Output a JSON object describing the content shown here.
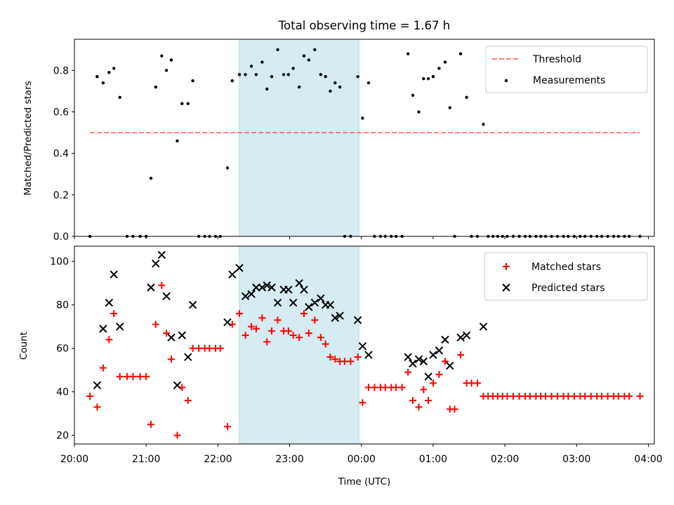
{
  "chart_data": [
    {
      "type": "scatter",
      "title": "Total observing time = 1.67 h",
      "xlabel": "",
      "ylabel": "Matched/Predicted stars",
      "ylim": [
        0.0,
        0.95
      ],
      "yticks": [
        "0.0",
        "0.2",
        "0.4",
        "0.6",
        "0.8"
      ],
      "highlight": {
        "start": "22:18",
        "end": "23:58",
        "color": "#add8e6"
      },
      "threshold": {
        "name": "Threshold",
        "value": 0.5,
        "x_start": "20:13",
        "x_end": "03:53",
        "color": "#ff0000"
      },
      "legend_position": "upper right",
      "series": [
        {
          "name": "Measurements",
          "color": "#000000",
          "marker": "dot",
          "points": [
            [
              "20:13",
              0.0
            ],
            [
              "20:19",
              0.77
            ],
            [
              "20:24",
              0.74
            ],
            [
              "20:29",
              0.79
            ],
            [
              "20:33",
              0.81
            ],
            [
              "20:38",
              0.67
            ],
            [
              "20:44",
              0.0
            ],
            [
              "20:49",
              0.0
            ],
            [
              "20:55",
              0.0
            ],
            [
              "21:00",
              0.0
            ],
            [
              "21:04",
              0.28
            ],
            [
              "21:08",
              0.72
            ],
            [
              "21:13",
              0.87
            ],
            [
              "21:17",
              0.8
            ],
            [
              "21:21",
              0.85
            ],
            [
              "21:26",
              0.46
            ],
            [
              "21:30",
              0.64
            ],
            [
              "21:35",
              0.64
            ],
            [
              "21:39",
              0.75
            ],
            [
              "21:44",
              0.0
            ],
            [
              "21:49",
              0.0
            ],
            [
              "21:53",
              0.0
            ],
            [
              "21:58",
              0.0
            ],
            [
              "22:02",
              0.0
            ],
            [
              "22:08",
              0.33
            ],
            [
              "22:12",
              0.75
            ],
            [
              "22:18",
              0.78
            ],
            [
              "22:23",
              0.78
            ],
            [
              "22:28",
              0.82
            ],
            [
              "22:32",
              0.78
            ],
            [
              "22:37",
              0.84
            ],
            [
              "22:41",
              0.71
            ],
            [
              "22:45",
              0.77
            ],
            [
              "22:50",
              0.9
            ],
            [
              "22:55",
              0.78
            ],
            [
              "22:59",
              0.78
            ],
            [
              "23:03",
              0.81
            ],
            [
              "23:08",
              0.72
            ],
            [
              "23:12",
              0.87
            ],
            [
              "23:16",
              0.85
            ],
            [
              "23:21",
              0.9
            ],
            [
              "23:26",
              0.78
            ],
            [
              "23:30",
              0.77
            ],
            [
              "23:34",
              0.7
            ],
            [
              "23:38",
              0.74
            ],
            [
              "23:42",
              0.72
            ],
            [
              "23:46",
              0.0
            ],
            [
              "23:51",
              0.0
            ],
            [
              "23:57",
              0.77
            ],
            [
              "00:01",
              0.57
            ],
            [
              "00:06",
              0.74
            ],
            [
              "00:11",
              0.0
            ],
            [
              "00:16",
              0.0
            ],
            [
              "00:20",
              0.0
            ],
            [
              "00:25",
              0.0
            ],
            [
              "00:29",
              0.0
            ],
            [
              "00:34",
              0.0
            ],
            [
              "00:39",
              0.88
            ],
            [
              "00:43",
              0.68
            ],
            [
              "00:48",
              0.6
            ],
            [
              "00:52",
              0.76
            ],
            [
              "00:56",
              0.76
            ],
            [
              "01:00",
              0.77
            ],
            [
              "01:05",
              0.81
            ],
            [
              "01:10",
              0.84
            ],
            [
              "01:14",
              0.62
            ],
            [
              "01:18",
              0.0
            ],
            [
              "01:23",
              0.88
            ],
            [
              "01:28",
              0.67
            ],
            [
              "01:32",
              0.0
            ],
            [
              "01:37",
              0.0
            ],
            [
              "01:42",
              0.54
            ],
            [
              "01:46",
              0.0
            ],
            [
              "01:50",
              0.0
            ],
            [
              "01:54",
              0.0
            ],
            [
              "01:58",
              0.0
            ],
            [
              "02:02",
              0.0
            ],
            [
              "02:07",
              0.0
            ],
            [
              "02:12",
              0.0
            ],
            [
              "02:17",
              0.0
            ],
            [
              "02:21",
              0.0
            ],
            [
              "02:26",
              0.0
            ],
            [
              "02:30",
              0.0
            ],
            [
              "02:34",
              0.0
            ],
            [
              "02:39",
              0.0
            ],
            [
              "02:44",
              0.0
            ],
            [
              "02:49",
              0.0
            ],
            [
              "02:53",
              0.0
            ],
            [
              "02:58",
              0.0
            ],
            [
              "03:03",
              0.0
            ],
            [
              "03:07",
              0.0
            ],
            [
              "03:12",
              0.0
            ],
            [
              "03:17",
              0.0
            ],
            [
              "03:21",
              0.0
            ],
            [
              "03:26",
              0.0
            ],
            [
              "03:31",
              0.0
            ],
            [
              "03:35",
              0.0
            ],
            [
              "03:40",
              0.0
            ],
            [
              "03:44",
              0.0
            ],
            [
              "03:53",
              0.0
            ]
          ]
        }
      ]
    },
    {
      "type": "scatter",
      "title": "",
      "xlabel": "Time (UTC)",
      "ylabel": "Count",
      "ylim": [
        16,
        107
      ],
      "yticks": [
        "20",
        "40",
        "60",
        "80",
        "100"
      ],
      "xticks": [
        "20:00",
        "21:00",
        "22:00",
        "23:00",
        "00:00",
        "01:00",
        "02:00",
        "03:00",
        "04:00"
      ],
      "highlight": {
        "start": "22:18",
        "end": "23:58",
        "color": "#add8e6"
      },
      "legend_position": "upper right",
      "series": [
        {
          "name": "Matched stars",
          "color": "#ff0000",
          "marker": "plus",
          "points": [
            [
              "20:13",
              38
            ],
            [
              "20:19",
              33
            ],
            [
              "20:24",
              51
            ],
            [
              "20:29",
              64
            ],
            [
              "20:33",
              76
            ],
            [
              "20:38",
              47
            ],
            [
              "20:44",
              47
            ],
            [
              "20:49",
              47
            ],
            [
              "20:55",
              47
            ],
            [
              "21:00",
              47
            ],
            [
              "21:04",
              25
            ],
            [
              "21:08",
              71
            ],
            [
              "21:13",
              89
            ],
            [
              "21:17",
              67
            ],
            [
              "21:21",
              55
            ],
            [
              "21:26",
              20
            ],
            [
              "21:30",
              42
            ],
            [
              "21:35",
              36
            ],
            [
              "21:39",
              60
            ],
            [
              "21:44",
              60
            ],
            [
              "21:49",
              60
            ],
            [
              "21:53",
              60
            ],
            [
              "21:58",
              60
            ],
            [
              "22:02",
              60
            ],
            [
              "22:08",
              24
            ],
            [
              "22:12",
              71
            ],
            [
              "22:18",
              76
            ],
            [
              "22:23",
              66
            ],
            [
              "22:28",
              70
            ],
            [
              "22:32",
              69
            ],
            [
              "22:37",
              74
            ],
            [
              "22:41",
              63
            ],
            [
              "22:45",
              68
            ],
            [
              "22:50",
              73
            ],
            [
              "22:55",
              68
            ],
            [
              "22:59",
              68
            ],
            [
              "23:03",
              66
            ],
            [
              "23:08",
              65
            ],
            [
              "23:12",
              76
            ],
            [
              "23:16",
              67
            ],
            [
              "23:21",
              73
            ],
            [
              "23:26",
              65
            ],
            [
              "23:30",
              62
            ],
            [
              "23:34",
              56
            ],
            [
              "23:38",
              55
            ],
            [
              "23:42",
              54
            ],
            [
              "23:46",
              54
            ],
            [
              "23:51",
              54
            ],
            [
              "23:57",
              56
            ],
            [
              "00:01",
              35
            ],
            [
              "00:06",
              42
            ],
            [
              "00:11",
              42
            ],
            [
              "00:16",
              42
            ],
            [
              "00:20",
              42
            ],
            [
              "00:25",
              42
            ],
            [
              "00:29",
              42
            ],
            [
              "00:34",
              42
            ],
            [
              "00:39",
              49
            ],
            [
              "00:43",
              36
            ],
            [
              "00:48",
              33
            ],
            [
              "00:52",
              41
            ],
            [
              "00:56",
              36
            ],
            [
              "01:00",
              44
            ],
            [
              "01:05",
              48
            ],
            [
              "01:10",
              54
            ],
            [
              "01:14",
              32
            ],
            [
              "01:18",
              32
            ],
            [
              "01:23",
              57
            ],
            [
              "01:28",
              44
            ],
            [
              "01:32",
              44
            ],
            [
              "01:37",
              44
            ],
            [
              "01:42",
              38
            ],
            [
              "01:46",
              38
            ],
            [
              "01:50",
              38
            ],
            [
              "01:54",
              38
            ],
            [
              "01:58",
              38
            ],
            [
              "02:02",
              38
            ],
            [
              "02:07",
              38
            ],
            [
              "02:12",
              38
            ],
            [
              "02:17",
              38
            ],
            [
              "02:21",
              38
            ],
            [
              "02:26",
              38
            ],
            [
              "02:30",
              38
            ],
            [
              "02:34",
              38
            ],
            [
              "02:39",
              38
            ],
            [
              "02:44",
              38
            ],
            [
              "02:49",
              38
            ],
            [
              "02:53",
              38
            ],
            [
              "02:58",
              38
            ],
            [
              "03:03",
              38
            ],
            [
              "03:07",
              38
            ],
            [
              "03:12",
              38
            ],
            [
              "03:17",
              38
            ],
            [
              "03:21",
              38
            ],
            [
              "03:26",
              38
            ],
            [
              "03:31",
              38
            ],
            [
              "03:35",
              38
            ],
            [
              "03:40",
              38
            ],
            [
              "03:44",
              38
            ],
            [
              "03:53",
              38
            ]
          ]
        },
        {
          "name": "Predicted stars",
          "color": "#000000",
          "marker": "x",
          "points": [
            [
              "20:19",
              43
            ],
            [
              "20:24",
              69
            ],
            [
              "20:29",
              81
            ],
            [
              "20:33",
              94
            ],
            [
              "20:38",
              70
            ],
            [
              "21:04",
              88
            ],
            [
              "21:08",
              99
            ],
            [
              "21:13",
              103
            ],
            [
              "21:17",
              84
            ],
            [
              "21:21",
              65
            ],
            [
              "21:26",
              43
            ],
            [
              "21:30",
              66
            ],
            [
              "21:35",
              56
            ],
            [
              "21:39",
              80
            ],
            [
              "22:08",
              72
            ],
            [
              "22:12",
              94
            ],
            [
              "22:18",
              97
            ],
            [
              "22:23",
              84
            ],
            [
              "22:28",
              85
            ],
            [
              "22:32",
              88
            ],
            [
              "22:37",
              88
            ],
            [
              "22:41",
              89
            ],
            [
              "22:45",
              88
            ],
            [
              "22:50",
              81
            ],
            [
              "22:55",
              87
            ],
            [
              "22:59",
              87
            ],
            [
              "23:03",
              81
            ],
            [
              "23:08",
              90
            ],
            [
              "23:12",
              87
            ],
            [
              "23:16",
              79
            ],
            [
              "23:21",
              81
            ],
            [
              "23:26",
              83
            ],
            [
              "23:30",
              80
            ],
            [
              "23:34",
              80
            ],
            [
              "23:38",
              74
            ],
            [
              "23:42",
              75
            ],
            [
              "23:57",
              73
            ],
            [
              "00:01",
              61
            ],
            [
              "00:06",
              57
            ],
            [
              "00:39",
              56
            ],
            [
              "00:43",
              53
            ],
            [
              "00:48",
              55
            ],
            [
              "00:52",
              54
            ],
            [
              "00:56",
              47
            ],
            [
              "01:00",
              57
            ],
            [
              "01:05",
              59
            ],
            [
              "01:10",
              64
            ],
            [
              "01:14",
              52
            ],
            [
              "01:23",
              65
            ],
            [
              "01:28",
              66
            ],
            [
              "01:42",
              70
            ]
          ]
        }
      ]
    }
  ]
}
